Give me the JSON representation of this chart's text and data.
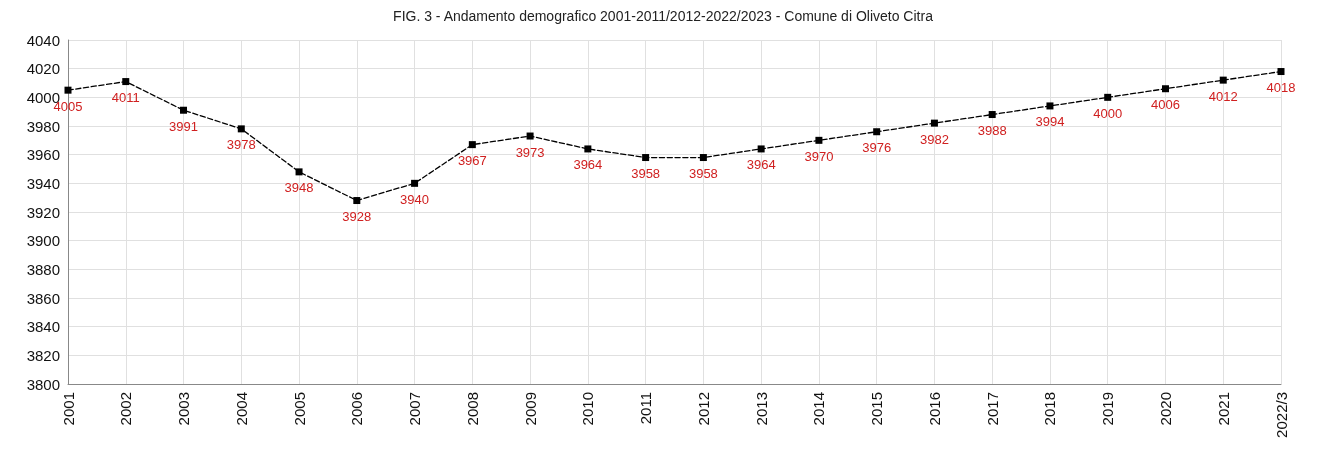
{
  "chart_data": {
    "type": "line",
    "title": "FIG. 3 - Andamento demografico 2001-2011/2012-2022/2023 - Comune di Oliveto Citra",
    "categories": [
      "2001",
      "2002",
      "2003",
      "2004",
      "2005",
      "2006",
      "2007",
      "2008",
      "2009",
      "2010",
      "2011",
      "2012",
      "2013",
      "2014",
      "2015",
      "2016",
      "2017",
      "2018",
      "2019",
      "2020",
      "2021",
      "2022/3"
    ],
    "series": [
      {
        "color": "#000000",
        "values": [
          4005,
          4011,
          3991,
          3978,
          3948,
          3928,
          3940,
          3967,
          3973,
          3964,
          3958,
          3958,
          3964,
          3970,
          3976,
          3982,
          3988,
          3994,
          4000,
          4006,
          4012,
          4018
        ]
      }
    ],
    "ylim": [
      3800,
      4040
    ],
    "yticks": [
      3800,
      3820,
      3840,
      3860,
      3880,
      3900,
      3920,
      3940,
      3960,
      3980,
      4000,
      4020,
      4040
    ],
    "grid": true,
    "marker": "square",
    "line_style": "dashed",
    "data_labels": true
  }
}
